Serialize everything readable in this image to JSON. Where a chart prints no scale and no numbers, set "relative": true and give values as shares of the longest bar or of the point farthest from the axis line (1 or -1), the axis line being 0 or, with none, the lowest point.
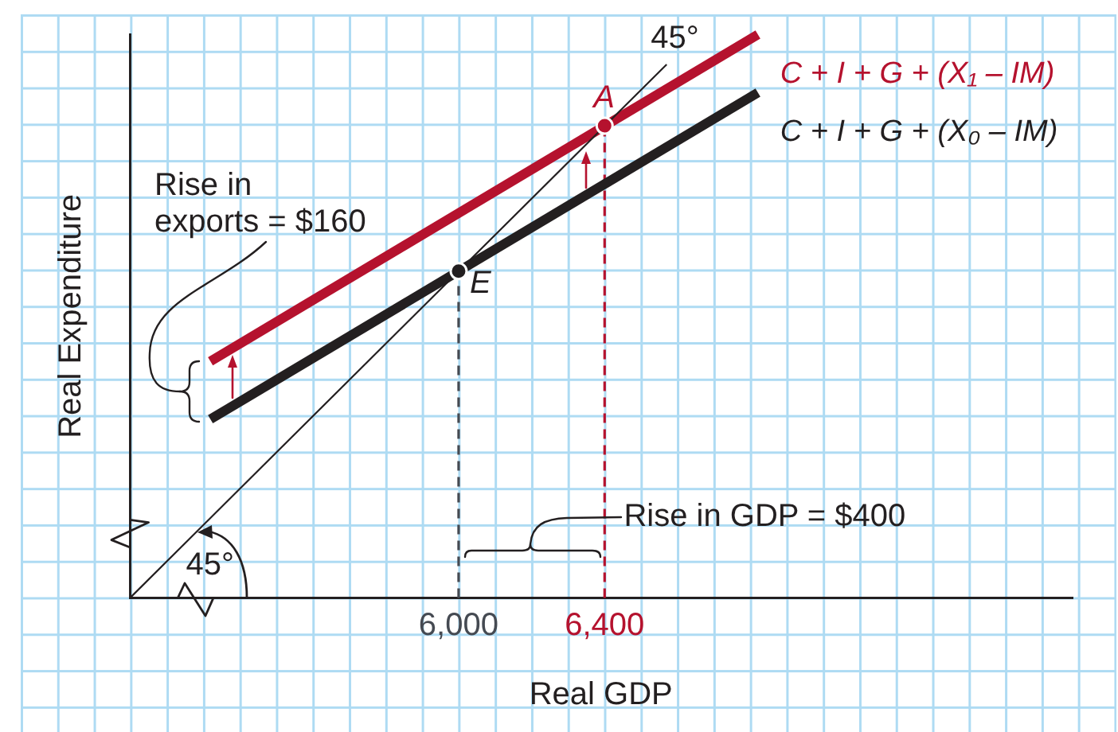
{
  "chart_data": {
    "type": "line",
    "xlabel": "Real GDP",
    "ylabel": "Real Expenditure",
    "relative": true,
    "xlim": [
      5100,
      7680
    ],
    "xticks": [
      {
        "value": 6000,
        "label": "6,000"
      },
      {
        "value": 6400,
        "label": "6,400"
      }
    ],
    "legend": false,
    "grid": false,
    "marker": "none",
    "series": [
      {
        "color": "#231f20",
        "x": [
          5100,
          6570
        ],
        "values": [
          0,
          0.947
        ]
      },
      {
        "name": "C + I + G + (X₀ – IM)",
        "color": "#231f20",
        "x": [
          5320,
          6820
        ],
        "values": [
          0.317,
          0.897
        ]
      },
      {
        "name": "C + I + G + (X₁ – IM)",
        "color": "#b5122e",
        "x": [
          5320,
          6820
        ],
        "values": [
          0.42,
          1
        ]
      },
      {
        "color": "#454a52",
        "x": [
          6000,
          6000
        ],
        "values": [
          0,
          0.58
        ],
        "line_style": "dashed"
      },
      {
        "color": "#b5122e",
        "x": [
          6400,
          6400
        ],
        "values": [
          0,
          0.838
        ],
        "line_style": "dashed"
      },
      {
        "type": "scatter",
        "color": "#231f20",
        "x": [
          6000
        ],
        "values": [
          0.58
        ],
        "marker": "circle"
      },
      {
        "type": "scatter",
        "color": "#b5122e",
        "x": [
          6400
        ],
        "values": [
          0.838
        ],
        "marker": "circle"
      }
    ],
    "annotations": [
      {
        "text": "45°",
        "x": 6570,
        "y": 0.947
      },
      {
        "text": "A",
        "x": 6400,
        "y": 0.838
      },
      {
        "text": "E",
        "x": 6000,
        "y": 0.58
      },
      "Rise in\nexports = $160",
      "Rise in GDP = $400",
      {
        "text": "45°",
        "x": 5100,
        "y": 0
      }
    ]
  }
}
